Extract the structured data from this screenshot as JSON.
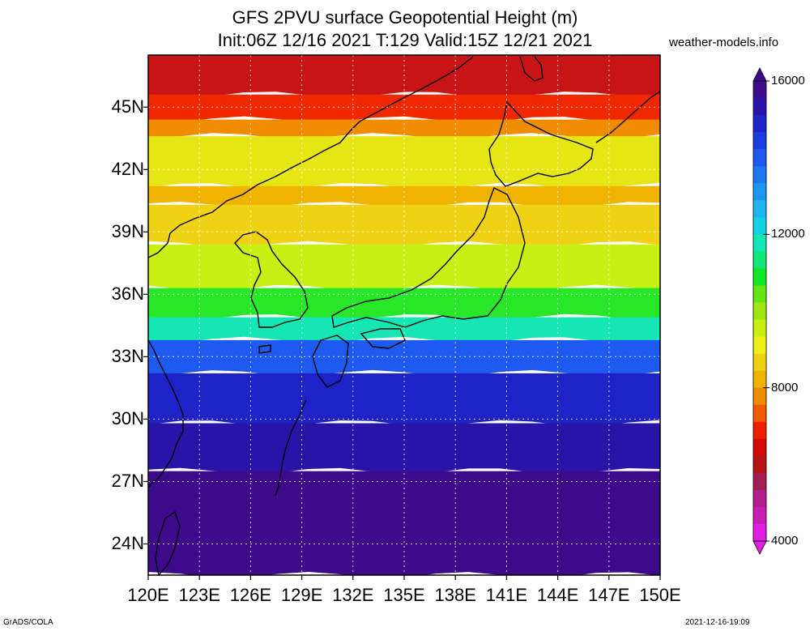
{
  "title": {
    "line1": "GFS 2PVU surface Geopotential Height (m)",
    "line2": "Init:06Z 12/16 2021 T:129 Valid:15Z 12/21 2021"
  },
  "site": "weather-models.info",
  "footer": {
    "left": "GrADS/COLA",
    "right": "2021-12-16-19:09"
  },
  "map": {
    "lon_range": [
      120,
      150
    ],
    "lat_range": [
      22.5,
      47.5
    ],
    "lat_ticks": [
      {
        "value": 45,
        "label": "45N"
      },
      {
        "value": 42,
        "label": "42N"
      },
      {
        "value": 39,
        "label": "39N"
      },
      {
        "value": 36,
        "label": "36N"
      },
      {
        "value": 33,
        "label": "33N"
      },
      {
        "value": 30,
        "label": "30N"
      },
      {
        "value": 27,
        "label": "27N"
      },
      {
        "value": 24,
        "label": "24N"
      }
    ],
    "lon_ticks": [
      {
        "value": 120,
        "label": "120E"
      },
      {
        "value": 123,
        "label": "123E"
      },
      {
        "value": 126,
        "label": "126E"
      },
      {
        "value": 129,
        "label": "129E"
      },
      {
        "value": 132,
        "label": "132E"
      },
      {
        "value": 135,
        "label": "135E"
      },
      {
        "value": 138,
        "label": "138E"
      },
      {
        "value": 141,
        "label": "141E"
      },
      {
        "value": 144,
        "label": "144E"
      },
      {
        "value": 147,
        "label": "147E"
      },
      {
        "value": 150,
        "label": "150E"
      }
    ],
    "gridlines": true,
    "coastlines": true
  },
  "colorbar": {
    "min": 4000,
    "max": 16000,
    "labels": [
      {
        "value": 16000,
        "label": "16000"
      },
      {
        "value": 12000,
        "label": "12000"
      },
      {
        "value": 8000,
        "label": "8000"
      },
      {
        "value": 4000,
        "label": "4000"
      }
    ],
    "colors_top_to_bottom": [
      "#3c0a8a",
      "#2a14a8",
      "#1e23c8",
      "#1a3ce0",
      "#1e5af0",
      "#1e78f0",
      "#1e96f0",
      "#1eb4f0",
      "#14d2e6",
      "#14e6b4",
      "#14e678",
      "#14e628",
      "#64e614",
      "#a0e614",
      "#c8f014",
      "#f0f014",
      "#f0d214",
      "#f0b400",
      "#f08c00",
      "#f05a00",
      "#f01e00",
      "#d20a00",
      "#b41414",
      "#a01e50",
      "#b41e8c",
      "#c81eb4",
      "#e11ee6"
    ]
  },
  "zones": [
    {
      "name": "polar",
      "lat_top": 47.5,
      "lat_bot": 45.6,
      "color": "#c81414"
    },
    {
      "name": "jet-north-red",
      "lat_top": 45.6,
      "lat_bot": 44.4,
      "color": "#f02800"
    },
    {
      "name": "orange-1",
      "lat_top": 44.4,
      "lat_bot": 43.6,
      "color": "#f08c00"
    },
    {
      "name": "yellow-1",
      "lat_top": 43.6,
      "lat_bot": 41.2,
      "color": "#e6e614"
    },
    {
      "name": "orange-2",
      "lat_top": 41.2,
      "lat_bot": 40.3,
      "color": "#f0b400"
    },
    {
      "name": "yellow-2",
      "lat_top": 40.3,
      "lat_bot": 38.4,
      "color": "#f0d214"
    },
    {
      "name": "lime",
      "lat_top": 38.4,
      "lat_bot": 36.3,
      "color": "#c8f014"
    },
    {
      "name": "green",
      "lat_top": 36.3,
      "lat_bot": 34.9,
      "color": "#28e628"
    },
    {
      "name": "cyan",
      "lat_top": 34.9,
      "lat_bot": 33.8,
      "color": "#14e6b4"
    },
    {
      "name": "blue-1",
      "lat_top": 33.8,
      "lat_bot": 32.2,
      "color": "#1e5af0"
    },
    {
      "name": "blue-2",
      "lat_top": 32.2,
      "lat_bot": 29.8,
      "color": "#1e23c8"
    },
    {
      "name": "indigo",
      "lat_top": 29.8,
      "lat_bot": 27.5,
      "color": "#2a14a8"
    },
    {
      "name": "violet",
      "lat_top": 27.5,
      "lat_bot": 22.5,
      "color": "#3c0a8a"
    }
  ]
}
